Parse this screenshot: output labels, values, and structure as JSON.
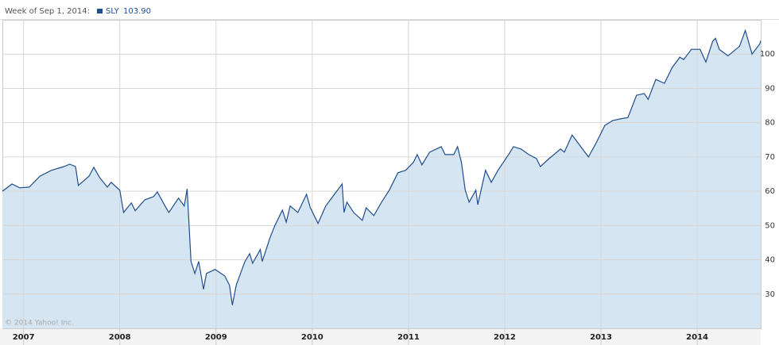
{
  "chart_data": {
    "type": "area",
    "title": "Week of Sep 1, 2014:",
    "legend_value": "103.90",
    "credit": "© 2014 Yahoo! Inc.",
    "x": [
      2006.78,
      2006.88,
      2006.96,
      2007.06,
      2007.17,
      2007.29,
      2007.42,
      2007.48,
      2007.54,
      2007.57,
      2007.68,
      2007.73,
      2007.79,
      2007.87,
      2007.91,
      2008.0,
      2008.04,
      2008.12,
      2008.16,
      2008.26,
      2008.35,
      2008.39,
      2008.47,
      2008.51,
      2008.61,
      2008.67,
      2008.7,
      2008.74,
      2008.78,
      2008.82,
      2008.87,
      2008.9,
      2008.99,
      2009.09,
      2009.14,
      2009.17,
      2009.21,
      2009.3,
      2009.35,
      2009.38,
      2009.46,
      2009.48,
      2009.56,
      2009.61,
      2009.69,
      2009.73,
      2009.77,
      2009.85,
      2009.94,
      2009.98,
      2010.06,
      2010.14,
      2010.23,
      2010.31,
      2010.33,
      2010.36,
      2010.43,
      2010.52,
      2010.56,
      2010.64,
      2010.72,
      2010.8,
      2010.89,
      2010.97,
      2011.05,
      2011.09,
      2011.14,
      2011.22,
      2011.34,
      2011.38,
      2011.47,
      2011.51,
      2011.55,
      2011.59,
      2011.63,
      2011.7,
      2011.72,
      2011.8,
      2011.86,
      2011.93,
      2012.04,
      2012.09,
      2012.17,
      2012.25,
      2012.33,
      2012.37,
      2012.46,
      2012.58,
      2012.62,
      2012.7,
      2012.79,
      2012.87,
      2012.95,
      2013.04,
      2013.12,
      2013.2,
      2013.28,
      2013.37,
      2013.45,
      2013.49,
      2013.57,
      2013.66,
      2013.74,
      2013.82,
      2013.86,
      2013.94,
      2014.03,
      2014.09,
      2014.16,
      2014.19,
      2014.23,
      2014.32,
      2014.44,
      2014.5,
      2014.57,
      2014.65,
      2014.66
    ],
    "series": [
      {
        "name": "SLY",
        "color": "#1f4e8c",
        "fill": "#d5e5f1",
        "values": [
          60.0,
          62.1,
          61.0,
          61.2,
          64.4,
          66.1,
          67.2,
          67.9,
          67.2,
          61.7,
          64.4,
          67.0,
          64.0,
          61.2,
          62.6,
          60.3,
          53.8,
          56.6,
          54.3,
          57.5,
          58.4,
          59.8,
          55.7,
          53.8,
          58.0,
          55.7,
          60.7,
          39.5,
          36.0,
          39.5,
          31.4,
          36.0,
          37.2,
          35.3,
          32.6,
          26.8,
          32.6,
          39.5,
          41.8,
          39.0,
          43.0,
          39.5,
          46.4,
          49.9,
          54.5,
          51.0,
          55.7,
          53.8,
          59.1,
          55.2,
          50.6,
          55.7,
          59.1,
          62.1,
          53.8,
          56.8,
          53.8,
          51.5,
          55.2,
          52.9,
          56.8,
          60.3,
          65.4,
          66.1,
          68.4,
          70.7,
          67.7,
          71.4,
          73.0,
          70.7,
          70.7,
          73.0,
          68.4,
          60.3,
          56.8,
          60.3,
          56.1,
          66.1,
          62.6,
          66.1,
          70.7,
          73.0,
          72.3,
          70.7,
          69.5,
          67.2,
          69.5,
          72.3,
          71.4,
          76.4,
          73.0,
          70.0,
          74.1,
          79.2,
          80.6,
          81.1,
          81.5,
          88.0,
          88.5,
          86.8,
          92.6,
          91.5,
          96.1,
          99.1,
          98.4,
          101.4,
          101.4,
          97.7,
          103.7,
          104.6,
          101.4,
          99.5,
          102.3,
          106.9,
          100.0,
          103.0,
          103.9
        ]
      }
    ],
    "xlim": [
      2006.78,
      2014.66
    ],
    "xticks": [
      2007,
      2008,
      2009,
      2010,
      2011,
      2012,
      2013,
      2014
    ],
    "ylim": [
      20,
      110
    ],
    "yticks": [
      30,
      40,
      50,
      60,
      70,
      80,
      90,
      100
    ],
    "grid": true,
    "y_axis_side": "right"
  }
}
